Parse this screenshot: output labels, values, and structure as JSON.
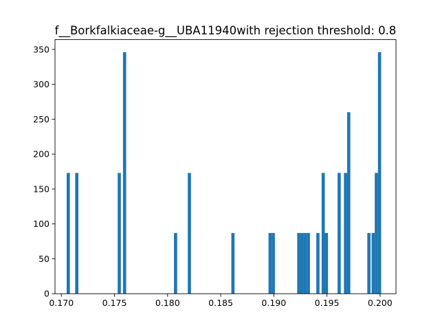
{
  "chart_data": {
    "type": "bar",
    "title": "f__Borkfalkiaceae-g__UBA11940with rejection threshold: 0.8",
    "xlabel": "",
    "ylabel": "",
    "xlim": [
      0.1694,
      0.2015
    ],
    "ylim": [
      0,
      364
    ],
    "grid": false,
    "bar_color": "#1f77b4",
    "bin_width": 0.0003,
    "x_ticks": [
      {
        "value": 0.17,
        "label": "0.170"
      },
      {
        "value": 0.175,
        "label": "0.175"
      },
      {
        "value": 0.18,
        "label": "0.180"
      },
      {
        "value": 0.185,
        "label": "0.185"
      },
      {
        "value": 0.19,
        "label": "0.190"
      },
      {
        "value": 0.195,
        "label": "0.195"
      },
      {
        "value": 0.2,
        "label": "0.200"
      }
    ],
    "y_ticks": [
      {
        "value": 0,
        "label": "0"
      },
      {
        "value": 50,
        "label": "50"
      },
      {
        "value": 100,
        "label": "100"
      },
      {
        "value": 150,
        "label": "150"
      },
      {
        "value": 200,
        "label": "200"
      },
      {
        "value": 250,
        "label": "250"
      },
      {
        "value": 300,
        "label": "300"
      },
      {
        "value": 350,
        "label": "350"
      }
    ],
    "bars": [
      {
        "x": 0.1705,
        "value": 173
      },
      {
        "x": 0.1713,
        "value": 173
      },
      {
        "x": 0.1753,
        "value": 173
      },
      {
        "x": 0.1758,
        "value": 346
      },
      {
        "x": 0.1806,
        "value": 87
      },
      {
        "x": 0.1819,
        "value": 173
      },
      {
        "x": 0.186,
        "value": 87
      },
      {
        "x": 0.1895,
        "value": 87
      },
      {
        "x": 0.1898,
        "value": 87
      },
      {
        "x": 0.1922,
        "value": 87
      },
      {
        "x": 0.1925,
        "value": 87
      },
      {
        "x": 0.1928,
        "value": 87
      },
      {
        "x": 0.1931,
        "value": 87
      },
      {
        "x": 0.194,
        "value": 87
      },
      {
        "x": 0.1945,
        "value": 173
      },
      {
        "x": 0.1948,
        "value": 87
      },
      {
        "x": 0.196,
        "value": 173
      },
      {
        "x": 0.1966,
        "value": 173
      },
      {
        "x": 0.1969,
        "value": 260
      },
      {
        "x": 0.1988,
        "value": 87
      },
      {
        "x": 0.1992,
        "value": 87
      },
      {
        "x": 0.1995,
        "value": 173
      },
      {
        "x": 0.1998,
        "value": 346
      }
    ]
  }
}
